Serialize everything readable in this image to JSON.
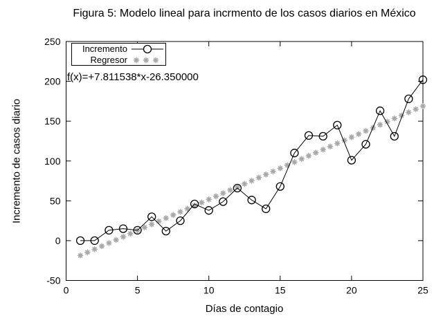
{
  "title": "Figura 5: Modelo lineal para incrmento de los casos diarios en México",
  "chart_data": {
    "type": "line",
    "title": "Figura 5: Modelo lineal para incrmento de los casos diarios en México",
    "xlabel": "Días de contagio",
    "ylabel": "Incremento de casos diario",
    "xlim": [
      0,
      25
    ],
    "ylim": [
      -50,
      250
    ],
    "x_ticks": [
      0,
      5,
      10,
      15,
      20,
      25
    ],
    "y_ticks": [
      -50,
      0,
      50,
      100,
      150,
      200,
      250
    ],
    "grid": false,
    "legend_position": "top-left",
    "annotation": "f(x)=+7.811538*x-26.350000",
    "series": [
      {
        "name": "Incremento",
        "type": "line",
        "marker": "open-circle",
        "color": "#000000",
        "x": [
          1,
          2,
          3,
          4,
          5,
          6,
          7,
          8,
          9,
          10,
          11,
          12,
          13,
          14,
          15,
          16,
          17,
          18,
          19,
          20,
          21,
          22,
          23,
          24,
          25
        ],
        "values": [
          0,
          0,
          13,
          15,
          13,
          30,
          12,
          25,
          46,
          38,
          49,
          66,
          51,
          40,
          68,
          110,
          132,
          131,
          145,
          101,
          121,
          163,
          131,
          178,
          202
        ]
      },
      {
        "name": "Regresor",
        "type": "scatter",
        "marker": "asterisk",
        "color": "#a8a8a8",
        "function": {
          "slope": 7.811538,
          "intercept": -26.35,
          "x_start": 1,
          "x_end": 25,
          "x_step": 0.5
        }
      }
    ]
  },
  "legend": {
    "items": [
      {
        "label": "Incremento"
      },
      {
        "label": "Regresor"
      }
    ]
  }
}
